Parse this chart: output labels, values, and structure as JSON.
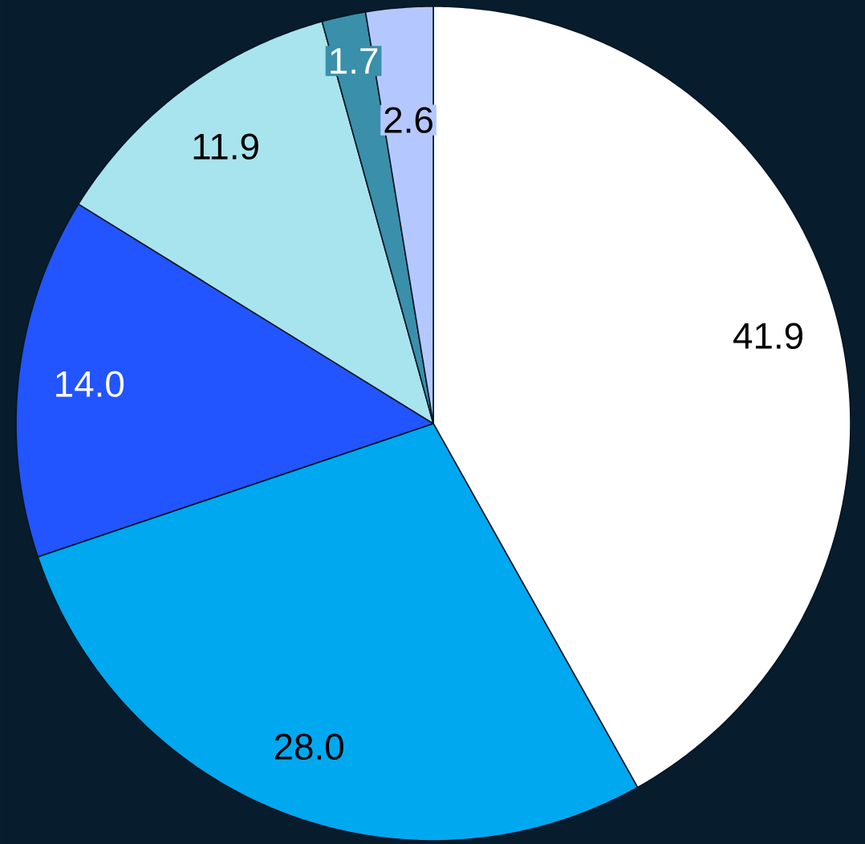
{
  "chart_data": {
    "type": "pie",
    "categories": [
      null,
      null,
      null,
      null,
      null,
      null
    ],
    "values": [
      41.9,
      28.0,
      14.0,
      11.9,
      1.7,
      2.6
    ],
    "colors": [
      "#ffffff",
      "#00a8f0",
      "#2255ff",
      "#a8e4ee",
      "#3a8faa",
      "#b4c8ff"
    ],
    "value_labels": [
      "41.9",
      "28.0",
      "14.0",
      "11.9",
      "1.7",
      "2.6"
    ]
  }
}
